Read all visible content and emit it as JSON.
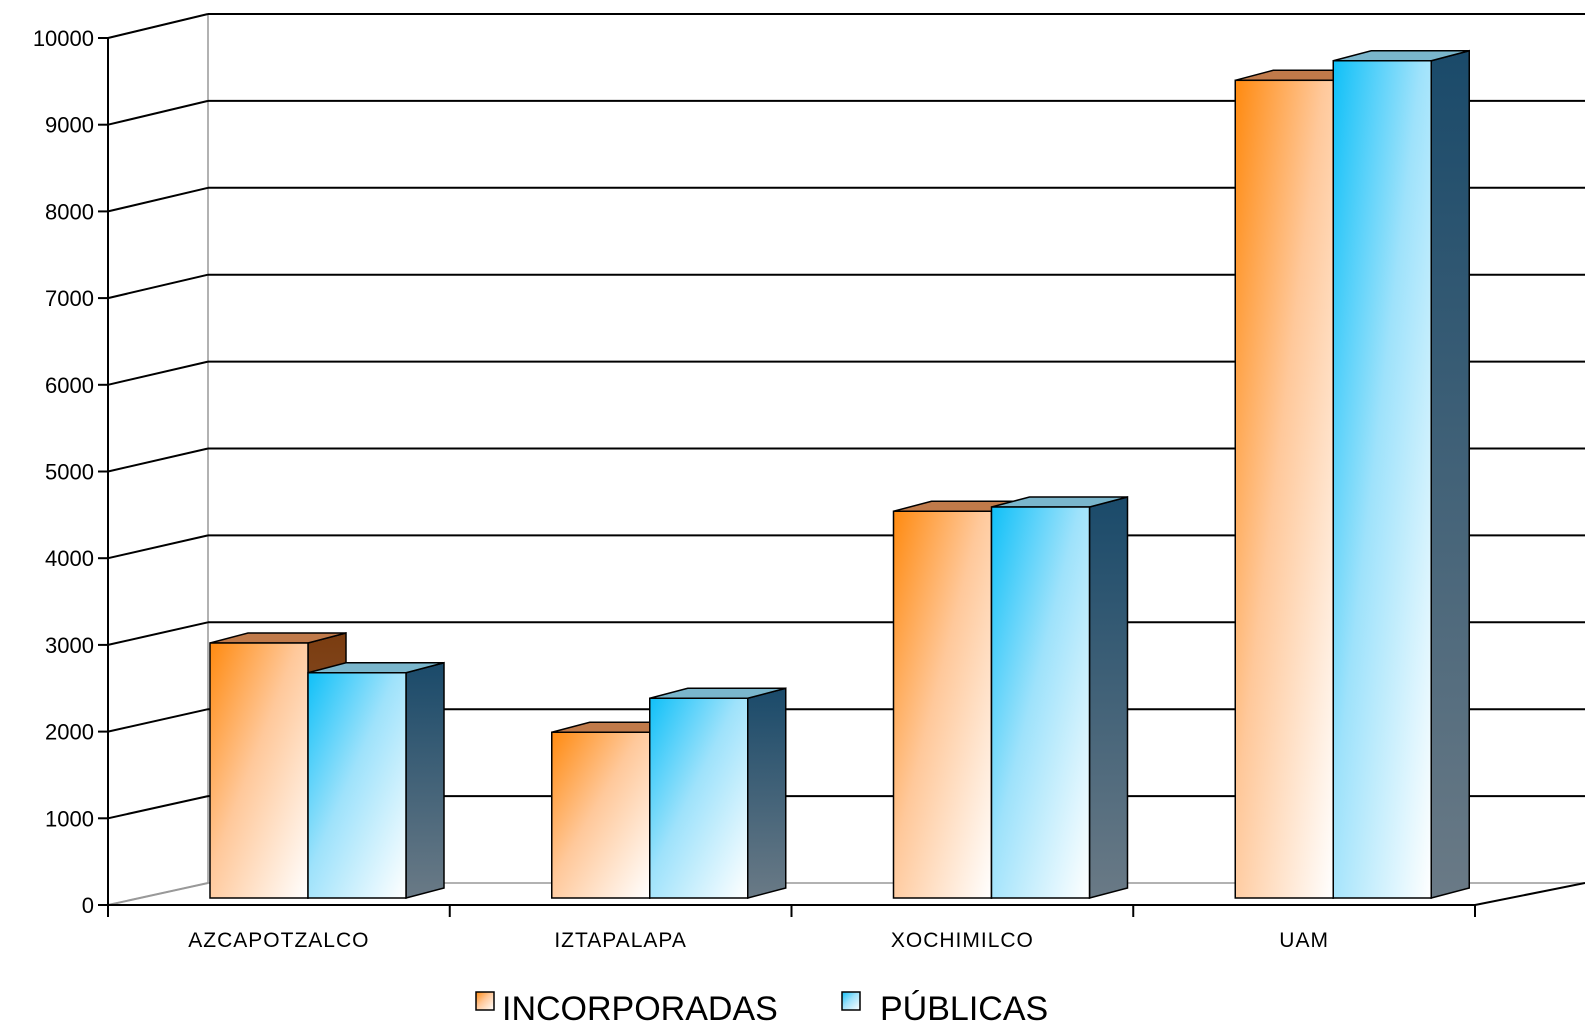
{
  "chart_data": {
    "type": "bar",
    "categories": [
      "AZCAPOTZALCO",
      "IZTAPALAPA",
      "XOCHIMILCO",
      "UAM"
    ],
    "series": [
      {
        "name": "INCORPORADAS",
        "values": [
          3000,
          1950,
          4550,
          9620
        ],
        "color": "#ff8c1a"
      },
      {
        "name": "PÚBLICAS",
        "values": [
          2650,
          2350,
          4600,
          9850
        ],
        "color": "#22c3f5"
      }
    ],
    "ylim": [
      0,
      10000
    ],
    "yticks": [
      0,
      1000,
      2000,
      3000,
      4000,
      5000,
      6000,
      7000,
      8000,
      9000,
      10000
    ],
    "grid": true,
    "legend_position": "bottom-center",
    "title": "",
    "xlabel": "",
    "ylabel": ""
  }
}
